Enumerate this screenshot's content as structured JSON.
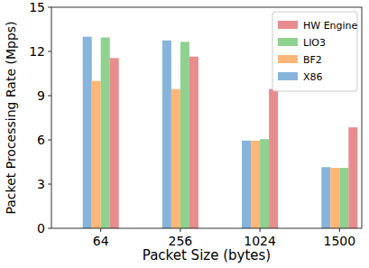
{
  "chart_data": {
    "type": "bar",
    "x_label": "Packet Size (bytes)",
    "y_label": "Packet Processing Rate (Mpps)",
    "categories": [
      "64",
      "256",
      "1024",
      "1500"
    ],
    "series": [
      {
        "name": "HW Engine",
        "color": "#e98c8e",
        "values": [
          11.55,
          11.65,
          9.45,
          6.85
        ]
      },
      {
        "name": "LIO3",
        "color": "#8fd18f",
        "values": [
          12.95,
          12.65,
          6.05,
          4.1
        ]
      },
      {
        "name": "BF2",
        "color": "#ffb677",
        "values": [
          10.0,
          9.45,
          5.95,
          4.1
        ]
      },
      {
        "name": "X86",
        "color": "#86b4da",
        "values": [
          13.0,
          12.75,
          5.95,
          4.15
        ]
      }
    ],
    "ylim": [
      0,
      15
    ],
    "yticks": [
      0,
      3,
      6,
      9,
      12,
      15
    ],
    "grid": false,
    "legend": "upper right"
  }
}
